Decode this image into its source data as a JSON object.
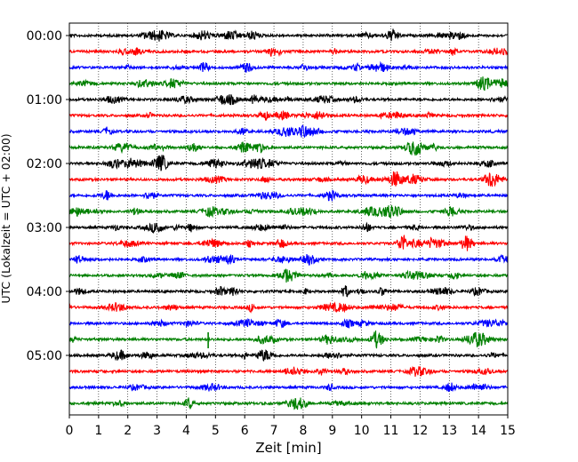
{
  "chart_data": {
    "type": "line",
    "plot_kind": "helicorder",
    "xlabel": "Zeit  [min]",
    "ylabel": "UTC (Lokalzeit = UTC + 02:00)",
    "xlim": [
      0,
      15
    ],
    "x_ticks": [
      0,
      1,
      2,
      3,
      4,
      5,
      6,
      7,
      8,
      9,
      10,
      11,
      12,
      13,
      14,
      15
    ],
    "y_tick_labels": [
      "00:00",
      "01:00",
      "02:00",
      "03:00",
      "04:00",
      "05:00"
    ],
    "grid": "vertical dotted lines at each minute",
    "trace_interval_minutes": 15,
    "trace_colors": [
      "#000000",
      "#ff0000",
      "#0000ff",
      "#008000"
    ],
    "series": [
      {
        "start": "00:00",
        "color": "#000000"
      },
      {
        "start": "00:15",
        "color": "#ff0000"
      },
      {
        "start": "00:30",
        "color": "#0000ff"
      },
      {
        "start": "00:45",
        "color": "#008000"
      },
      {
        "start": "01:00",
        "color": "#000000"
      },
      {
        "start": "01:15",
        "color": "#ff0000"
      },
      {
        "start": "01:30",
        "color": "#0000ff"
      },
      {
        "start": "01:45",
        "color": "#008000"
      },
      {
        "start": "02:00",
        "color": "#000000"
      },
      {
        "start": "02:15",
        "color": "#ff0000"
      },
      {
        "start": "02:30",
        "color": "#0000ff"
      },
      {
        "start": "02:45",
        "color": "#008000"
      },
      {
        "start": "03:00",
        "color": "#000000"
      },
      {
        "start": "03:15",
        "color": "#ff0000"
      },
      {
        "start": "03:30",
        "color": "#0000ff"
      },
      {
        "start": "03:45",
        "color": "#008000"
      },
      {
        "start": "04:00",
        "color": "#000000"
      },
      {
        "start": "04:15",
        "color": "#ff0000"
      },
      {
        "start": "04:30",
        "color": "#0000ff"
      },
      {
        "start": "04:45",
        "color": "#008000",
        "spike_at_min": 4.75
      },
      {
        "start": "05:00",
        "color": "#000000"
      },
      {
        "start": "05:15",
        "color": "#ff0000"
      },
      {
        "start": "05:30",
        "color": "#0000ff"
      },
      {
        "start": "05:45",
        "color": "#008000"
      }
    ]
  }
}
